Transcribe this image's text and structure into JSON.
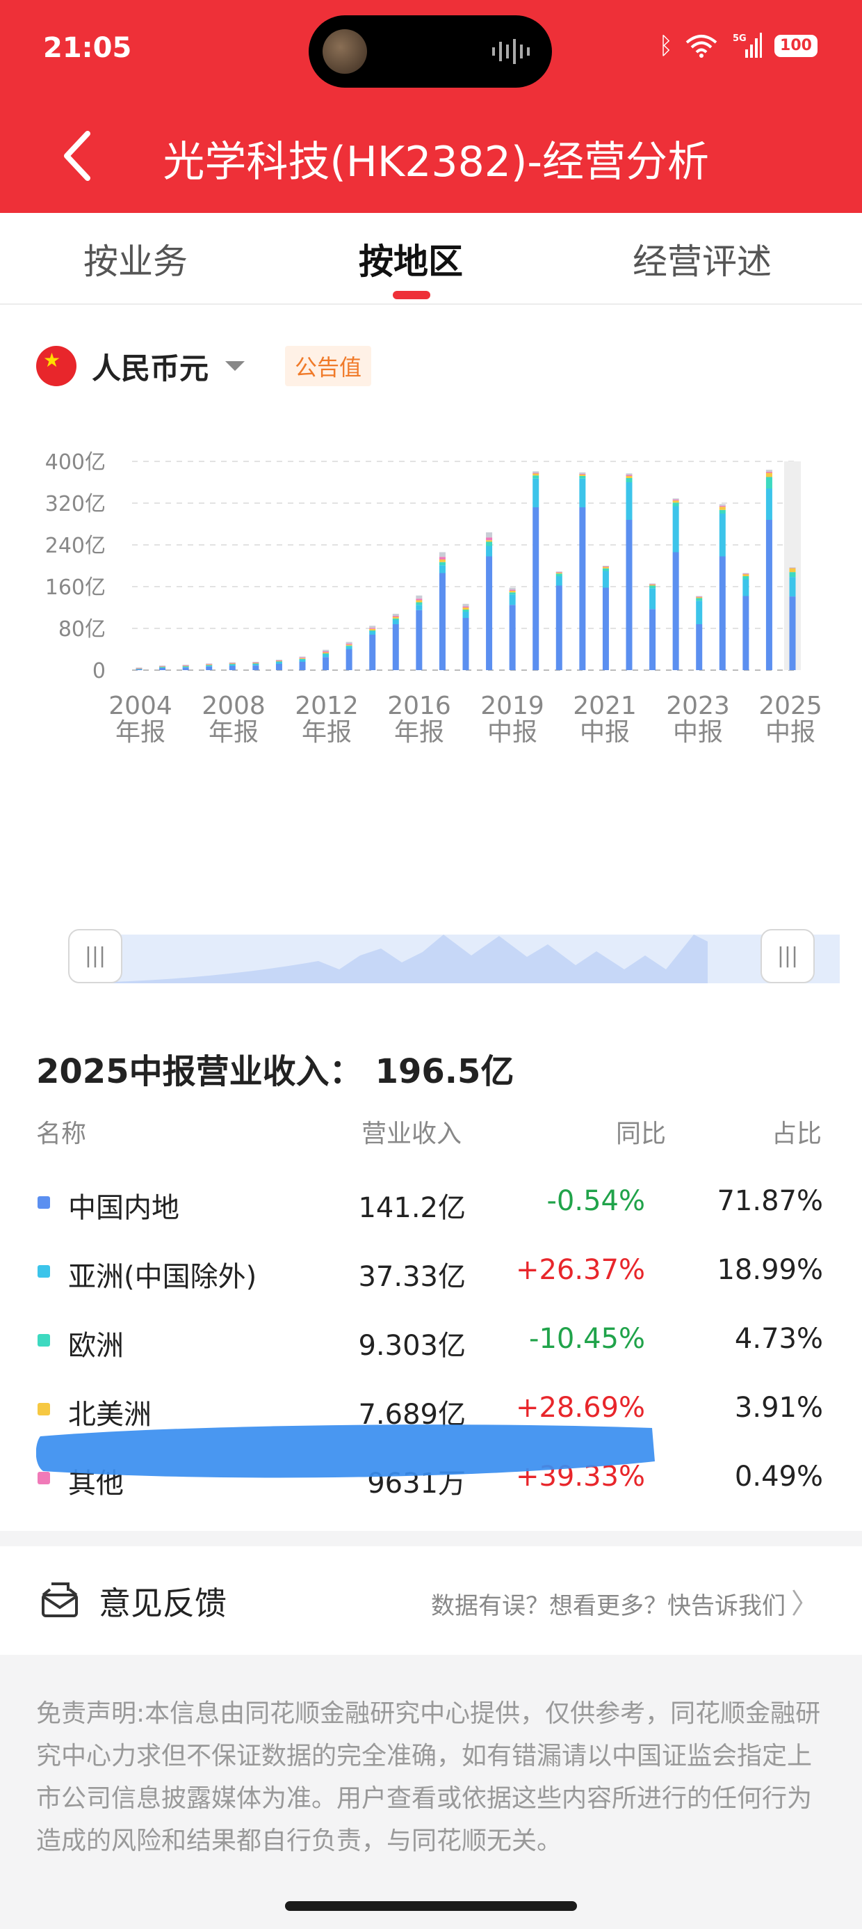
{
  "status_bar": {
    "time": "21:05",
    "signal_label": "5G",
    "battery": "100"
  },
  "header": {
    "title": "光学科技(HK2382)-经营分析",
    "back_icon": "chevron-left-icon"
  },
  "tabs": [
    {
      "label": "按业务",
      "active": false
    },
    {
      "label": "按地区",
      "active": true
    },
    {
      "label": "经营评述",
      "active": false
    }
  ],
  "currency": {
    "flag_icon": "china-flag-icon",
    "label": "人民币元",
    "badge": "公告值"
  },
  "chart_data": {
    "type": "bar",
    "stacked": true,
    "unit": "亿",
    "ylim": [
      0,
      400
    ],
    "yticks": [
      "0",
      "80亿",
      "160亿",
      "240亿",
      "320亿",
      "400亿"
    ],
    "xtick_labels": [
      [
        "2004",
        "年报"
      ],
      [
        "2008",
        "年报"
      ],
      [
        "2012",
        "年报"
      ],
      [
        "2016",
        "年报"
      ],
      [
        "2019",
        "中报"
      ],
      [
        "2021",
        "中报"
      ],
      [
        "2023",
        "中报"
      ],
      [
        "2025",
        "中报"
      ]
    ],
    "grid": true,
    "series_colors": [
      "#5b8ff0",
      "#3cc4ea",
      "#3dd9c0",
      "#f6c842",
      "#f07ab8",
      "#c9cdd6"
    ],
    "stacks": [
      [
        2,
        1,
        0.3,
        0.5,
        0.5,
        0.7
      ],
      [
        4,
        2,
        0.5,
        0.8,
        0.7,
        0.8
      ],
      [
        5,
        2,
        0.6,
        1,
        0.8,
        0.9
      ],
      [
        7,
        2,
        0.8,
        1,
        1,
        1
      ],
      [
        8,
        3,
        1,
        1,
        1,
        1
      ],
      [
        9,
        3,
        1,
        1,
        1,
        1
      ],
      [
        12,
        4,
        1,
        1,
        1,
        1
      ],
      [
        16,
        4,
        1.5,
        1.5,
        1.5,
        1.5
      ],
      [
        25,
        5,
        2,
        2,
        2,
        3
      ],
      [
        40,
        5,
        2,
        2,
        2,
        3
      ],
      [
        68,
        6,
        2,
        3,
        2,
        4
      ],
      [
        88,
        8,
        3,
        3,
        2,
        4
      ],
      [
        115,
        10,
        5,
        4,
        3,
        6
      ],
      [
        186,
        15,
        6,
        5,
        5,
        9
      ],
      [
        100,
        12,
        4,
        4,
        2,
        5
      ],
      [
        218,
        20,
        8,
        3,
        5,
        10
      ],
      [
        125,
        20,
        4,
        3,
        2,
        4
      ],
      [
        312,
        55,
        6,
        4,
        1,
        3
      ],
      [
        162,
        18,
        5,
        2,
        1,
        1
      ],
      [
        312,
        55,
        5,
        3,
        1,
        3
      ],
      [
        158,
        32,
        5,
        3,
        1,
        1
      ],
      [
        288,
        72,
        8,
        4,
        2,
        3
      ],
      [
        117,
        40,
        5,
        2,
        1,
        1
      ],
      [
        226,
        88,
        7,
        4,
        2,
        2
      ],
      [
        88,
        45,
        5,
        2,
        1,
        1
      ],
      [
        218,
        82,
        7,
        6,
        2,
        3
      ],
      [
        142,
        32,
        6,
        4,
        1,
        1
      ],
      [
        288,
        60,
        22,
        8,
        2,
        4
      ],
      [
        141.2,
        37.33,
        9.303,
        7.689,
        0.9631,
        0.5
      ]
    ]
  },
  "summary": {
    "label": "2025中报营业收入：",
    "amount": "196.5亿"
  },
  "table": {
    "headers": [
      "名称",
      "营业收入",
      "同比",
      "占比"
    ],
    "rows": [
      {
        "name": "中国内地",
        "revenue": "141.2亿",
        "yoy": "-0.54%",
        "share": "71.87%",
        "color": "#5b8ff0",
        "trend": "down"
      },
      {
        "name": "亚洲(中国除外)",
        "revenue": "37.33亿",
        "yoy": "+26.37%",
        "share": "18.99%",
        "color": "#3cc4ea",
        "trend": "up"
      },
      {
        "name": "欧洲",
        "revenue": "9.303亿",
        "yoy": "-10.45%",
        "share": "4.73%",
        "color": "#3dd9c0",
        "trend": "down"
      },
      {
        "name": "北美洲",
        "revenue": "7.689亿",
        "yoy": "+28.69%",
        "share": "3.91%",
        "color": "#f6c842",
        "trend": "up"
      },
      {
        "name": "其他",
        "revenue": "9631万",
        "yoy": "+39.33%",
        "share": "0.49%",
        "color": "#f07ab8",
        "trend": "up"
      }
    ]
  },
  "feedback": {
    "title": "意见反馈",
    "hint": "数据有误？想看更多？快告诉我们",
    "icon": "feedback-icon"
  },
  "disclaimer": "免责声明:本信息由同花顺金融研究中心提供，仅供参考，同花顺金融研究中心力求但不保证数据的完全准确，如有错漏请以中国证监会指定上市公司信息披露媒体为准。用户查看或依据这些内容所进行的任何行为造成的风险和结果都自行负责，与同花顺无关。"
}
